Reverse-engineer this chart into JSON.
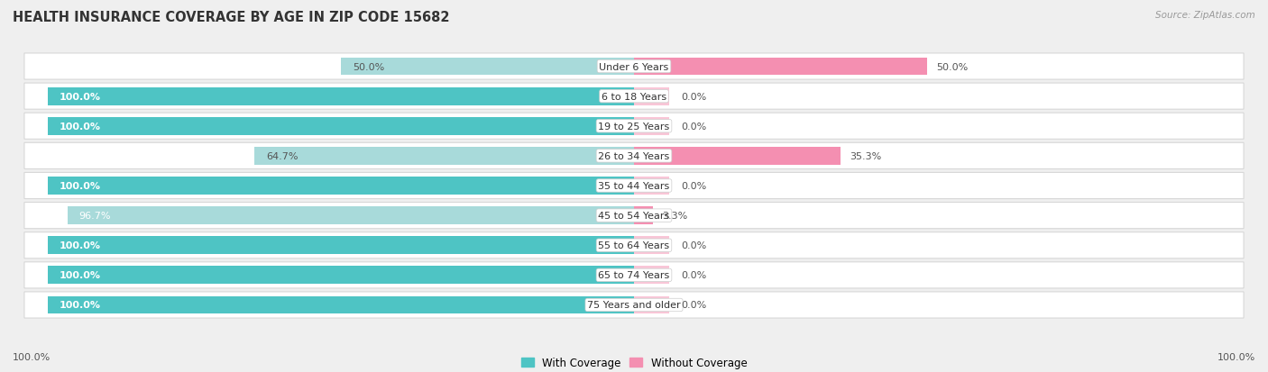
{
  "title": "HEALTH INSURANCE COVERAGE BY AGE IN ZIP CODE 15682",
  "source": "Source: ZipAtlas.com",
  "categories": [
    "Under 6 Years",
    "6 to 18 Years",
    "19 to 25 Years",
    "26 to 34 Years",
    "35 to 44 Years",
    "45 to 54 Years",
    "55 to 64 Years",
    "65 to 74 Years",
    "75 Years and older"
  ],
  "with_coverage": [
    50.0,
    100.0,
    100.0,
    64.7,
    100.0,
    96.7,
    100.0,
    100.0,
    100.0
  ],
  "without_coverage": [
    50.0,
    0.0,
    0.0,
    35.3,
    0.0,
    3.3,
    0.0,
    0.0,
    0.0
  ],
  "color_with": "#4EC4C4",
  "color_with_light": "#A8DADA",
  "color_without": "#F48FB1",
  "bg_color": "#efefef",
  "bar_bg": "#ffffff",
  "title_fontsize": 10.5,
  "label_fontsize": 8.0,
  "legend_fontsize": 8.5,
  "source_fontsize": 7.5,
  "bar_height": 0.6,
  "x_left_label": "100.0%",
  "x_right_label": "100.0%"
}
